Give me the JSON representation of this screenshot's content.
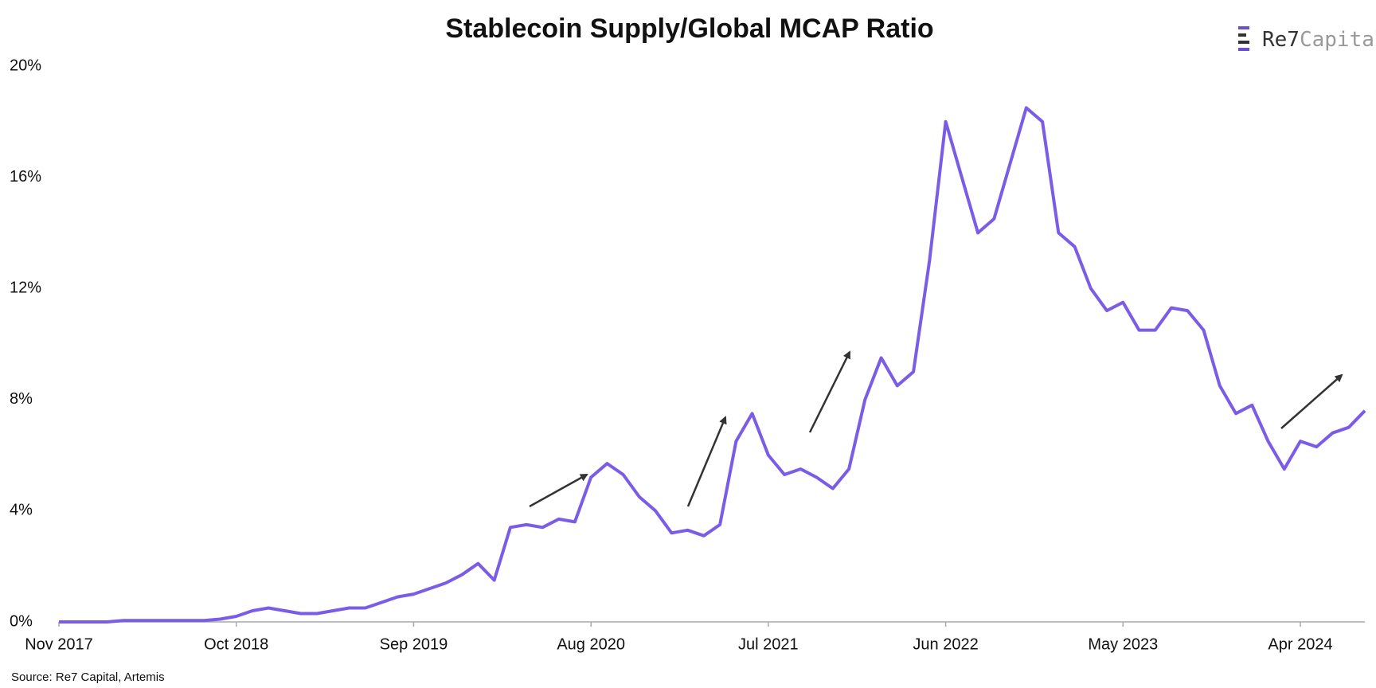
{
  "chart_data": {
    "type": "line",
    "title": "Stablecoin Supply/Global MCAP Ratio",
    "brand": [
      "Re7",
      "Capital"
    ],
    "source": "Source: Re7 Capital, Artemis",
    "x": [
      "Nov 2017",
      "Dec 2017",
      "Jan 2018",
      "Feb 2018",
      "Mar 2018",
      "Apr 2018",
      "May 2018",
      "Jun 2018",
      "Jul 2018",
      "Aug 2018",
      "Sep 2018",
      "Oct 2018",
      "Nov 2018",
      "Dec 2018",
      "Jan 2019",
      "Feb 2019",
      "Mar 2019",
      "Apr 2019",
      "May 2019",
      "Jun 2019",
      "Jul 2019",
      "Aug 2019",
      "Sep 2019",
      "Oct 2019",
      "Nov 2019",
      "Dec 2019",
      "Jan 2020",
      "Feb 2020",
      "Mar 2020",
      "Apr 2020",
      "May 2020",
      "Jun 2020",
      "Jul 2020",
      "Aug 2020",
      "Sep 2020",
      "Oct 2020",
      "Nov 2020",
      "Dec 2020",
      "Jan 2021",
      "Feb 2021",
      "Mar 2021",
      "Apr 2021",
      "May 2021",
      "Jun 2021",
      "Jul 2021",
      "Aug 2021",
      "Sep 2021",
      "Oct 2021",
      "Nov 2021",
      "Dec 2021",
      "Jan 2022",
      "Feb 2022",
      "Mar 2022",
      "Apr 2022",
      "May 2022",
      "Jun 2022",
      "Jul 2022",
      "Aug 2022",
      "Sep 2022",
      "Oct 2022",
      "Nov 2022",
      "Dec 2022",
      "Jan 2023",
      "Feb 2023",
      "Mar 2023",
      "Apr 2023",
      "May 2023",
      "Jun 2023",
      "Jul 2023",
      "Aug 2023",
      "Sep 2023",
      "Oct 2023",
      "Nov 2023",
      "Dec 2023",
      "Jan 2024",
      "Feb 2024",
      "Mar 2024",
      "Apr 2024",
      "May 2024",
      "Jun 2024",
      "Jul 2024",
      "Aug 2024"
    ],
    "series": [
      {
        "name": "Stablecoin Supply/Global MCAP",
        "color": "#7b5ce6",
        "values": [
          0,
          0,
          0,
          0,
          0.05,
          0.05,
          0.05,
          0.05,
          0.05,
          0.05,
          0.1,
          0.2,
          0.4,
          0.5,
          0.4,
          0.3,
          0.3,
          0.4,
          0.5,
          0.5,
          0.7,
          0.9,
          1.0,
          1.2,
          1.4,
          1.7,
          2.1,
          1.5,
          3.4,
          3.5,
          3.4,
          3.7,
          3.6,
          5.2,
          5.7,
          5.3,
          4.5,
          4.0,
          3.2,
          3.3,
          3.1,
          3.5,
          6.5,
          7.5,
          6.0,
          5.3,
          5.5,
          5.2,
          4.8,
          5.5,
          8.0,
          9.5,
          8.5,
          9.0,
          13,
          18,
          16,
          14,
          14.5,
          16.5,
          18.5,
          18,
          14,
          13.5,
          12,
          11.2,
          11.5,
          10.5,
          10.5,
          11.3,
          11.2,
          10.5,
          8.5,
          7.5,
          7.8,
          6.5,
          5.5,
          6.5,
          6.3,
          6.8,
          7.0,
          7.6
        ]
      }
    ],
    "xticks": [
      "Nov 2017",
      "Oct 2018",
      "Sep 2019",
      "Aug 2020",
      "Jul 2021",
      "Jun 2022",
      "May 2023",
      "Apr 2024"
    ],
    "ylim": [
      0,
      20
    ],
    "yticks": [
      {
        "value": 0,
        "label": "0%"
      },
      {
        "value": 4,
        "label": "4%"
      },
      {
        "value": 8,
        "label": "8%"
      },
      {
        "value": 12,
        "label": "12%"
      },
      {
        "value": 16,
        "label": "16%"
      },
      {
        "value": 20,
        "label": "20%"
      }
    ],
    "grid": false
  }
}
